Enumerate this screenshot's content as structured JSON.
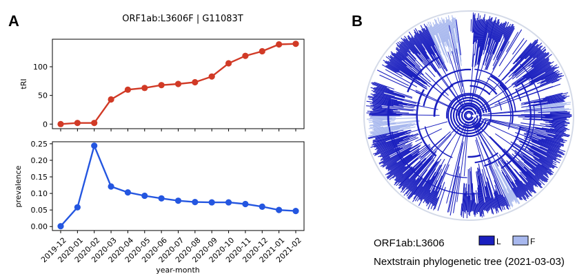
{
  "panels": {
    "a": "A",
    "b": "B"
  },
  "chart_data": [
    {
      "type": "line",
      "title": "ORF1ab:L3606F  |  G11083T",
      "xlabel": "",
      "ylabel": "tRI",
      "categories": [
        "2019-12",
        "2020-01",
        "2020-02",
        "2020-03",
        "2020-04",
        "2020-05",
        "2020-06",
        "2020-07",
        "2020-08",
        "2020-09",
        "2020-10",
        "2020-11",
        "2020-12",
        "2021-01",
        "2021-02"
      ],
      "series": [
        {
          "values": [
            0,
            2,
            2,
            43,
            60,
            63,
            68,
            70,
            73,
            83,
            106,
            119,
            127,
            139,
            140
          ]
        }
      ],
      "yticks": [
        0,
        50,
        100
      ],
      "ylim": [
        -8,
        148
      ],
      "color": "#d13a26",
      "grid": false
    },
    {
      "type": "line",
      "xlabel": "year-month",
      "ylabel": "prevalence",
      "categories": [
        "2019-12",
        "2020-01",
        "2020-02",
        "2020-03",
        "2020-04",
        "2020-05",
        "2020-06",
        "2020-07",
        "2020-08",
        "2020-09",
        "2020-10",
        "2020-11",
        "2020-12",
        "2021-01",
        "2021-02"
      ],
      "series": [
        {
          "values": [
            0.001,
            0.058,
            0.244,
            0.121,
            0.103,
            0.093,
            0.085,
            0.078,
            0.074,
            0.073,
            0.073,
            0.068,
            0.06,
            0.05,
            0.047
          ]
        }
      ],
      "yticks": [
        0.0,
        0.05,
        0.1,
        0.15,
        0.2,
        0.25
      ],
      "ytick_labels": [
        "0.00",
        "0.05",
        "0.10",
        "0.15",
        "0.20",
        "0.25"
      ],
      "ylim": [
        -0.012,
        0.256
      ],
      "color": "#2456e0",
      "grid": false
    }
  ],
  "tree": {
    "gene_label": "ORF1ab:L3606",
    "legend": [
      {
        "label": "L",
        "color": "#1a1fbf"
      },
      {
        "label": "F",
        "color": "#a8b8ee"
      }
    ],
    "caption": "Nextstrain phylogenetic tree (2021-03-03)"
  }
}
